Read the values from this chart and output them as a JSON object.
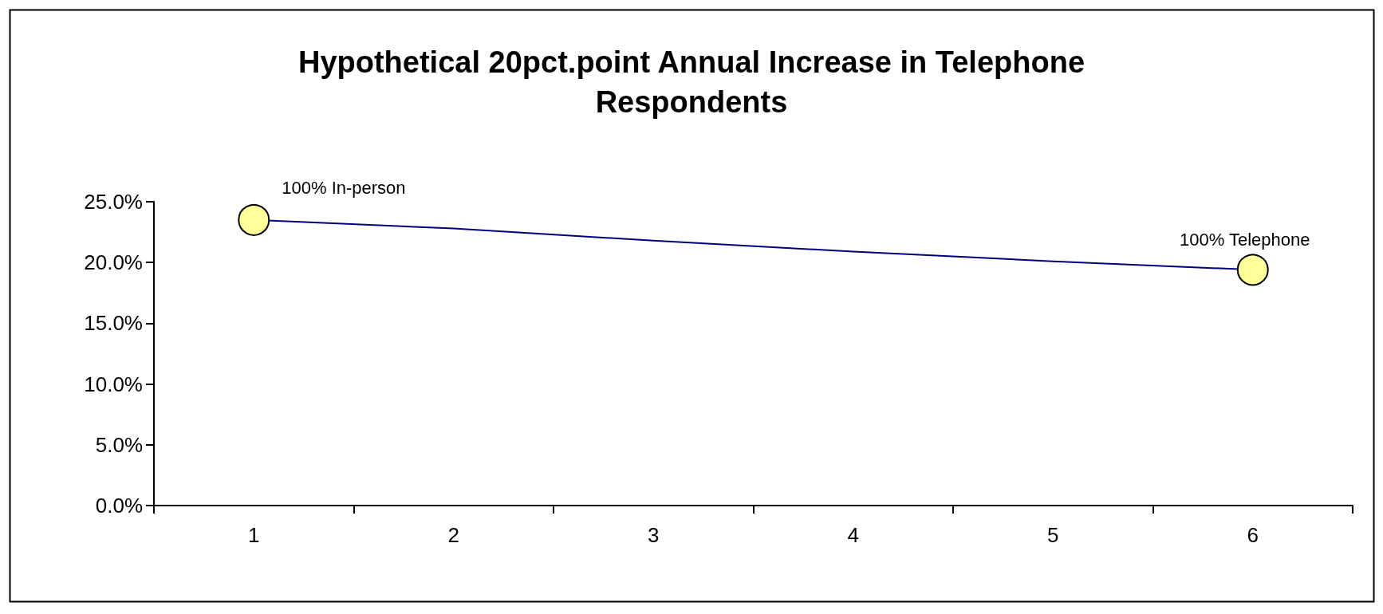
{
  "chart_data": {
    "type": "line",
    "title": "Hypothetical 20pct.point Annual Increase in Telephone\nRespondents",
    "categories": [
      "1",
      "2",
      "3",
      "4",
      "5",
      "6"
    ],
    "series": [
      {
        "color": "#000080",
        "values": [
          23.5,
          22.8,
          21.8,
          20.9,
          20.1,
          19.4
        ]
      }
    ],
    "ylim": [
      0,
      25
    ],
    "yticks": [
      {
        "value": 0,
        "label": "0.0%"
      },
      {
        "value": 5,
        "label": "5.0%"
      },
      {
        "value": 10,
        "label": "10.0%"
      },
      {
        "value": 15,
        "label": "15.0%"
      },
      {
        "value": 20,
        "label": "20.0%"
      },
      {
        "value": 25,
        "label": "25.0%"
      }
    ],
    "annotations": [
      {
        "text": "100% In-person",
        "x": "1",
        "y": 23.5
      },
      {
        "text": "100% Telephone",
        "x": "6",
        "y": 19.4
      }
    ],
    "grid": false,
    "marker": "none",
    "line_style": "solid"
  }
}
